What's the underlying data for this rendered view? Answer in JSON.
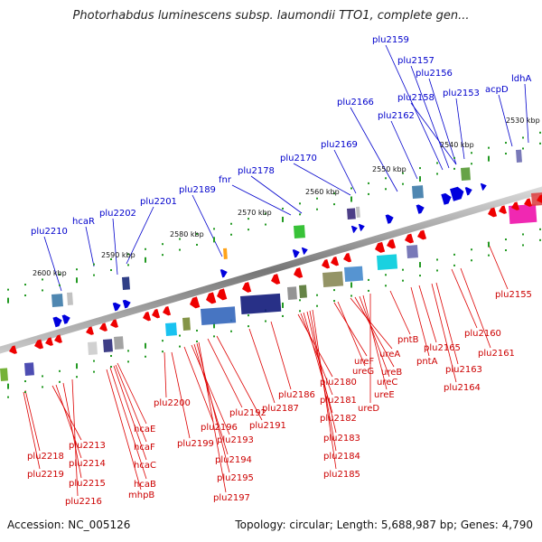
{
  "title": "Photorhabdus luminescens subsp. laumondii TTO1, complete gen...",
  "footer": {
    "accession": "Accession: NC_005126",
    "info": "Topology: circular; Length: 5,688,987 bp; Genes: 4,790"
  },
  "colors": {
    "backbone": "#888888",
    "tick": "#229922",
    "forward_gene": "#0000dd",
    "forward_label": "#0000cc",
    "reverse_gene": "#ee0000",
    "reverse_label": "#cc0000",
    "pseudo": "#4a4aa0"
  },
  "scale_labels": [
    "2530 kbp",
    "2540 kbp",
    "2550 kbp",
    "2560 kbp",
    "2570 kbp",
    "2580 kbp",
    "2590 kbp",
    "2600 kbp"
  ],
  "top_labels": [
    "plu2210",
    "hcaR",
    "plu2202",
    "plu2201",
    "plu2189",
    "fnr",
    "plu2178",
    "plu2170",
    "plu2169",
    "plu2166",
    "plu2162",
    "plu2159",
    "plu2157",
    "plu2158",
    "plu2156",
    "plu2153",
    "acpD",
    "ldhA"
  ],
  "bottom_labels": [
    "plu2218",
    "plu2219",
    "plu2213",
    "plu2214",
    "plu2215",
    "plu2216",
    "hcaE",
    "hcaF",
    "hcaC",
    "hcaB",
    "mhpB",
    "plu2200",
    "plu2199",
    "plu2196",
    "plu2193",
    "plu2194",
    "plu2195",
    "plu2197",
    "plu2192",
    "plu2191",
    "plu2187",
    "plu2186",
    "plu2180",
    "plu2181",
    "plu2182",
    "plu2183",
    "plu2184",
    "plu2185",
    "ureF",
    "ureG",
    "ureA",
    "ureB",
    "ureC",
    "ureE",
    "ureD",
    "pntB",
    "pntA",
    "plu2165",
    "plu2163",
    "plu2164",
    "plu2160",
    "plu2161",
    "plu2155"
  ]
}
